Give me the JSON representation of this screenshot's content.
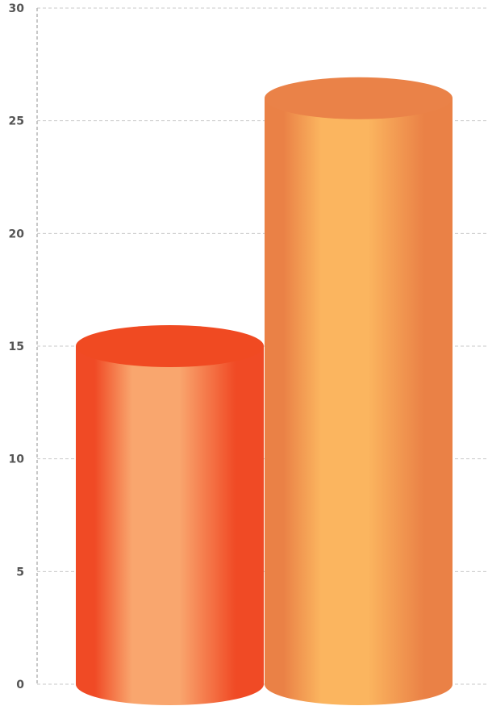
{
  "chart_data": {
    "type": "bar",
    "style": "3d-cylinder",
    "categories": [
      "",
      ""
    ],
    "values": [
      15,
      26
    ],
    "colors": {
      "bar_1": {
        "edge": "#f04a25",
        "light": "#f9a66e",
        "top": "#f04a22"
      },
      "bar_2": {
        "edge": "#ea8146",
        "light": "#fbb55f",
        "top": "#ea8248"
      }
    },
    "ylim": [
      0,
      30
    ],
    "yticks": [
      "0",
      "5",
      "10",
      "15",
      "20",
      "25",
      "30"
    ],
    "grid": true,
    "legend": "none"
  }
}
